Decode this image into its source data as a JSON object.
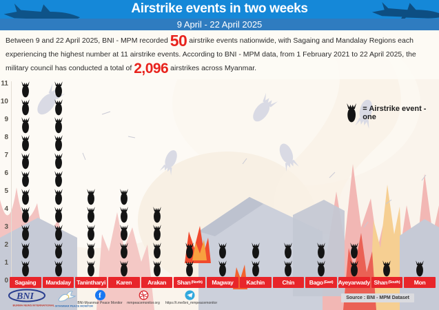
{
  "header": {
    "title": "Airstrike events in two weeks",
    "subtitle": "9 April - 22 April 2025"
  },
  "intro": {
    "part1": "Between 9 and 22 April 2025, BNI - MPM recorded ",
    "stat1": "50",
    "part2": " airstrike events nationwide, with Sagaing and Mandalay Regions each experiencing the highest number at 11 airstrike events. According to BNI - MPM data, from 1 February 2021 to 22 April 2025, the military council has conducted a total of ",
    "stat2": "2,096",
    "part3": " airstrikes across Myanmar."
  },
  "legend": {
    "label": "= Airstrike event - one"
  },
  "chart_data": {
    "type": "bar",
    "subtype": "pictogram",
    "unit_icon": "bomb",
    "unit_value": 1,
    "title": "Airstrike events in two weeks",
    "period": "9 April - 22 April 2025",
    "categories": [
      "Sagaing",
      "Mandalay",
      "Tanintharyi",
      "Karen",
      "Arakan",
      "Shan (North)",
      "Magway",
      "Kachin",
      "Chin",
      "Bago (East)",
      "Ayeyarwady",
      "Shan (South)",
      "Mon"
    ],
    "values": [
      11,
      11,
      5,
      5,
      4,
      2,
      2,
      2,
      2,
      2,
      2,
      1,
      1
    ],
    "y_ticks": [
      0,
      1,
      2,
      3,
      4,
      5,
      6,
      7,
      8,
      9,
      10,
      11
    ],
    "ylim": [
      0,
      11
    ],
    "grid": false,
    "legend": "= Airstrike event - one",
    "legend_position": "upper-right",
    "total_events": 50,
    "total_airstrikes_since_1_feb_2021": 2096
  },
  "footer": {
    "bni_caption": "BURMA NEWS INTERNATIONAL",
    "mpm_caption": "MYANMAR PEACE MONITOR",
    "facebook": "BNI-Myanmar Peace Monitor",
    "website": "mmpeacemonitor.org",
    "telegram": "https://t.me/bni_mmpeacemonitor",
    "source": "Source : BNI - MPM Dataset"
  },
  "colors": {
    "header_blue": "#1588d8",
    "subtitle_band_blue": "#2f7cc0",
    "accent_red": "#e8231d",
    "label_box_red": "#e8252a",
    "bomb_black": "#141414",
    "background_cream": "#faf4ec"
  }
}
